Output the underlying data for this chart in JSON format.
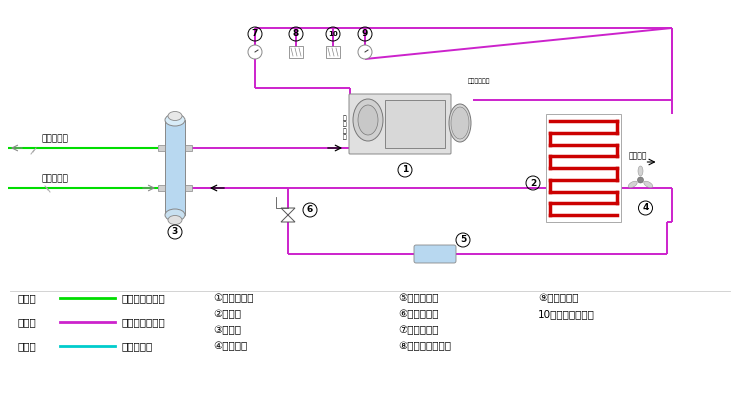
{
  "bg_color": "#ffffff",
  "magenta": "#cc22cc",
  "green": "#00dd00",
  "cyan": "#00cccc",
  "red": "#cc0000",
  "blue_light": "#b8d8f0",
  "legend_items": [
    {
      "label_prefix": "绿色线",
      "line_label": "载冷剂循环回路",
      "color": "#00dd00"
    },
    {
      "label_prefix": "红色线",
      "line_label": "制冷剂循环回路",
      "color": "#cc22cc"
    },
    {
      "label_prefix": "蓝色线",
      "line_label": "水循环回路",
      "color": "#00cccc"
    }
  ],
  "numbered_items_col1": [
    {
      "num": "①",
      "text": "螺杆压缩机"
    },
    {
      "num": "②",
      "text": "冷凝器"
    },
    {
      "num": "③",
      "text": "蒸发器"
    },
    {
      "num": "④",
      "text": "冷却风扇"
    }
  ],
  "numbered_items_col2": [
    {
      "num": "⑤",
      "text": "干燥过滤器"
    },
    {
      "num": "⑥",
      "text": "供液膨胀阀"
    },
    {
      "num": "⑦",
      "text": "低压压力表"
    },
    {
      "num": "⑧",
      "text": "低压压力控制器"
    }
  ],
  "numbered_items_col3": [
    {
      "num": "⑨",
      "text": "高压压力表"
    },
    {
      "num": "10",
      "text": "高压压力控制器"
    }
  ]
}
